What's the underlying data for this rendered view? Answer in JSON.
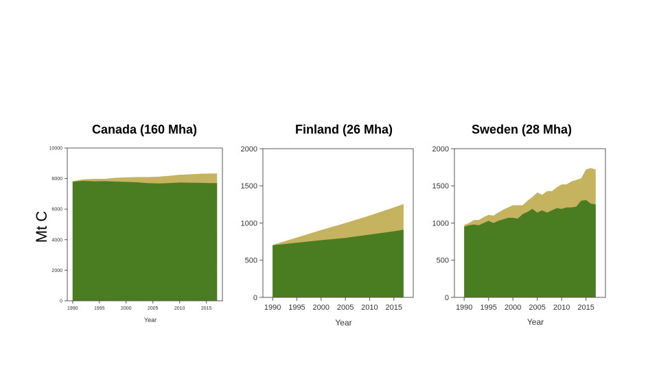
{
  "ylabel": "Mt C",
  "colors": {
    "live": "#4a7d22",
    "products": "#c5b35f",
    "frame": "#555555"
  },
  "chart_data": [
    {
      "type": "area",
      "title": "Canada (160 Mha)",
      "xlabel": "Year",
      "ylabel": "Mt C",
      "xlim": [
        1989,
        2018
      ],
      "ylim": [
        0,
        10000
      ],
      "xticks": [
        1990,
        1995,
        2000,
        2005,
        2010,
        2015
      ],
      "yticks": [
        0,
        2000,
        4000,
        6000,
        8000,
        10000
      ],
      "ytick_labels": [
        "0",
        "2000",
        "4000",
        "6000",
        "8000",
        "10000"
      ],
      "x": [
        1990,
        1992,
        1994,
        1996,
        1998,
        2000,
        2002,
        2004,
        2006,
        2008,
        2010,
        2012,
        2014,
        2016,
        2017
      ],
      "series": [
        {
          "values": [
            7800,
            7850,
            7820,
            7830,
            7800,
            7780,
            7760,
            7700,
            7680,
            7700,
            7740,
            7730,
            7720,
            7700,
            7700
          ]
        },
        {
          "values": [
            7820,
            7950,
            7980,
            7980,
            8050,
            8080,
            8100,
            8100,
            8120,
            8180,
            8250,
            8280,
            8320,
            8330,
            8330
          ]
        }
      ]
    },
    {
      "type": "area",
      "title": "Finland (26 Mha)",
      "xlabel": "Year",
      "ylabel": "Mt C",
      "xlim": [
        1988,
        2019
      ],
      "ylim": [
        0,
        2000
      ],
      "xticks": [
        1990,
        1995,
        2000,
        2005,
        2010,
        2015
      ],
      "yticks": [
        0,
        500,
        1000,
        1500,
        2000
      ],
      "ytick_labels": [
        "0",
        "500",
        "1000",
        "1500",
        "2000"
      ],
      "x": [
        1990,
        1995,
        2000,
        2005,
        2010,
        2015,
        2017
      ],
      "series": [
        {
          "values": [
            700,
            735,
            770,
            800,
            845,
            890,
            910
          ]
        },
        {
          "values": [
            705,
            805,
            905,
            1000,
            1100,
            1210,
            1255
          ]
        }
      ]
    },
    {
      "type": "area",
      "title": "Sweden (28 Mha)",
      "xlabel": "Year",
      "ylabel": "Mt C",
      "xlim": [
        1988,
        2019
      ],
      "ylim": [
        0,
        2000
      ],
      "xticks": [
        1990,
        1995,
        2000,
        2005,
        2010,
        2015
      ],
      "yticks": [
        0,
        500,
        1000,
        1500,
        2000
      ],
      "ytick_labels": [
        "0",
        "500",
        "1000",
        "1500",
        "2000"
      ],
      "x": [
        1990,
        1991,
        1992,
        1993,
        1994,
        1995,
        1996,
        1997,
        1998,
        1999,
        2000,
        2001,
        2002,
        2003,
        2004,
        2005,
        2006,
        2007,
        2008,
        2009,
        2010,
        2011,
        2012,
        2013,
        2014,
        2015,
        2016,
        2017
      ],
      "series": [
        {
          "values": [
            950,
            970,
            980,
            970,
            1000,
            1030,
            1000,
            1030,
            1050,
            1070,
            1070,
            1060,
            1120,
            1150,
            1190,
            1140,
            1170,
            1140,
            1170,
            1200,
            1190,
            1210,
            1210,
            1220,
            1300,
            1310,
            1260,
            1250
          ]
        },
        {
          "values": [
            975,
            1000,
            1040,
            1040,
            1080,
            1110,
            1100,
            1140,
            1180,
            1210,
            1240,
            1240,
            1240,
            1300,
            1350,
            1410,
            1380,
            1430,
            1430,
            1480,
            1520,
            1520,
            1560,
            1580,
            1600,
            1720,
            1740,
            1720
          ]
        }
      ]
    }
  ]
}
